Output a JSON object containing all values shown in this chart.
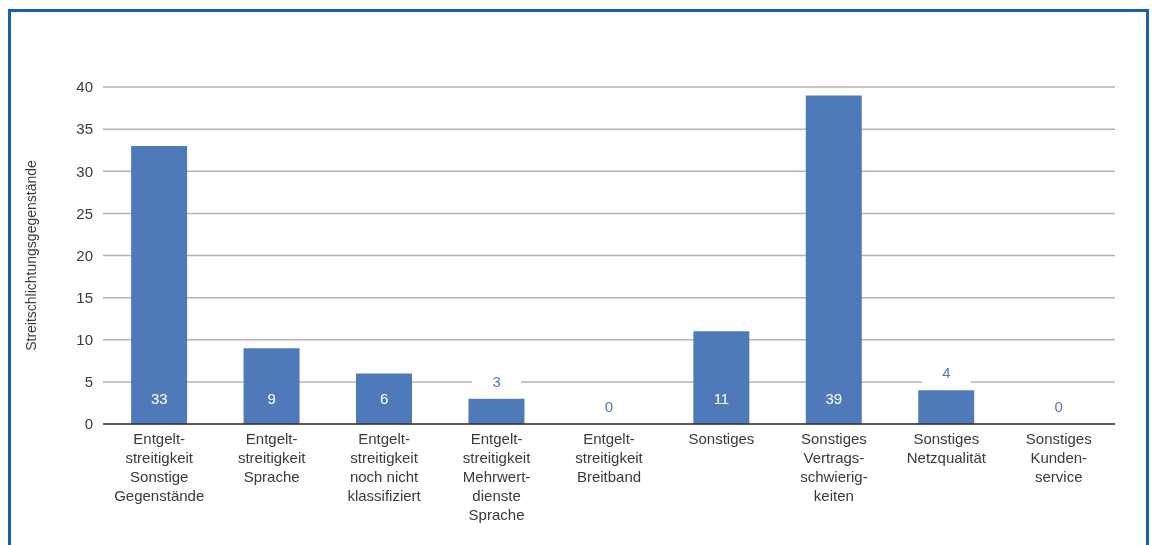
{
  "chart_data": {
    "type": "bar",
    "ylabel": "Streitschlichtungsgegenstände",
    "categories": [
      "Entgelt-\nstreitigkeit\nSonstige\nGegenstände",
      "Entgelt-\nstreitigkeit\nSprache",
      "Entgelt-\nstreitigkeit\nnoch nicht\nklassifiziert",
      "Entgelt-\nstreitigkeit\nMehrwert-\ndienste\nSprache",
      "Entgelt-\nstreitigkeit\nBreitband",
      "Sonstiges",
      "Sonstiges\nVertrags-\nschwierig-\nkeiten",
      "Sonstiges\nNetzqualität",
      "Sonstiges\nKunden-\nservice"
    ],
    "values": [
      33,
      9,
      6,
      3,
      0,
      11,
      39,
      4,
      0
    ],
    "color": "#4f7aba",
    "ylim": [
      0,
      40
    ],
    "yticks": [
      0,
      5,
      10,
      15,
      20,
      25,
      30,
      35,
      40
    ],
    "grid": "y",
    "data_labels": true
  }
}
